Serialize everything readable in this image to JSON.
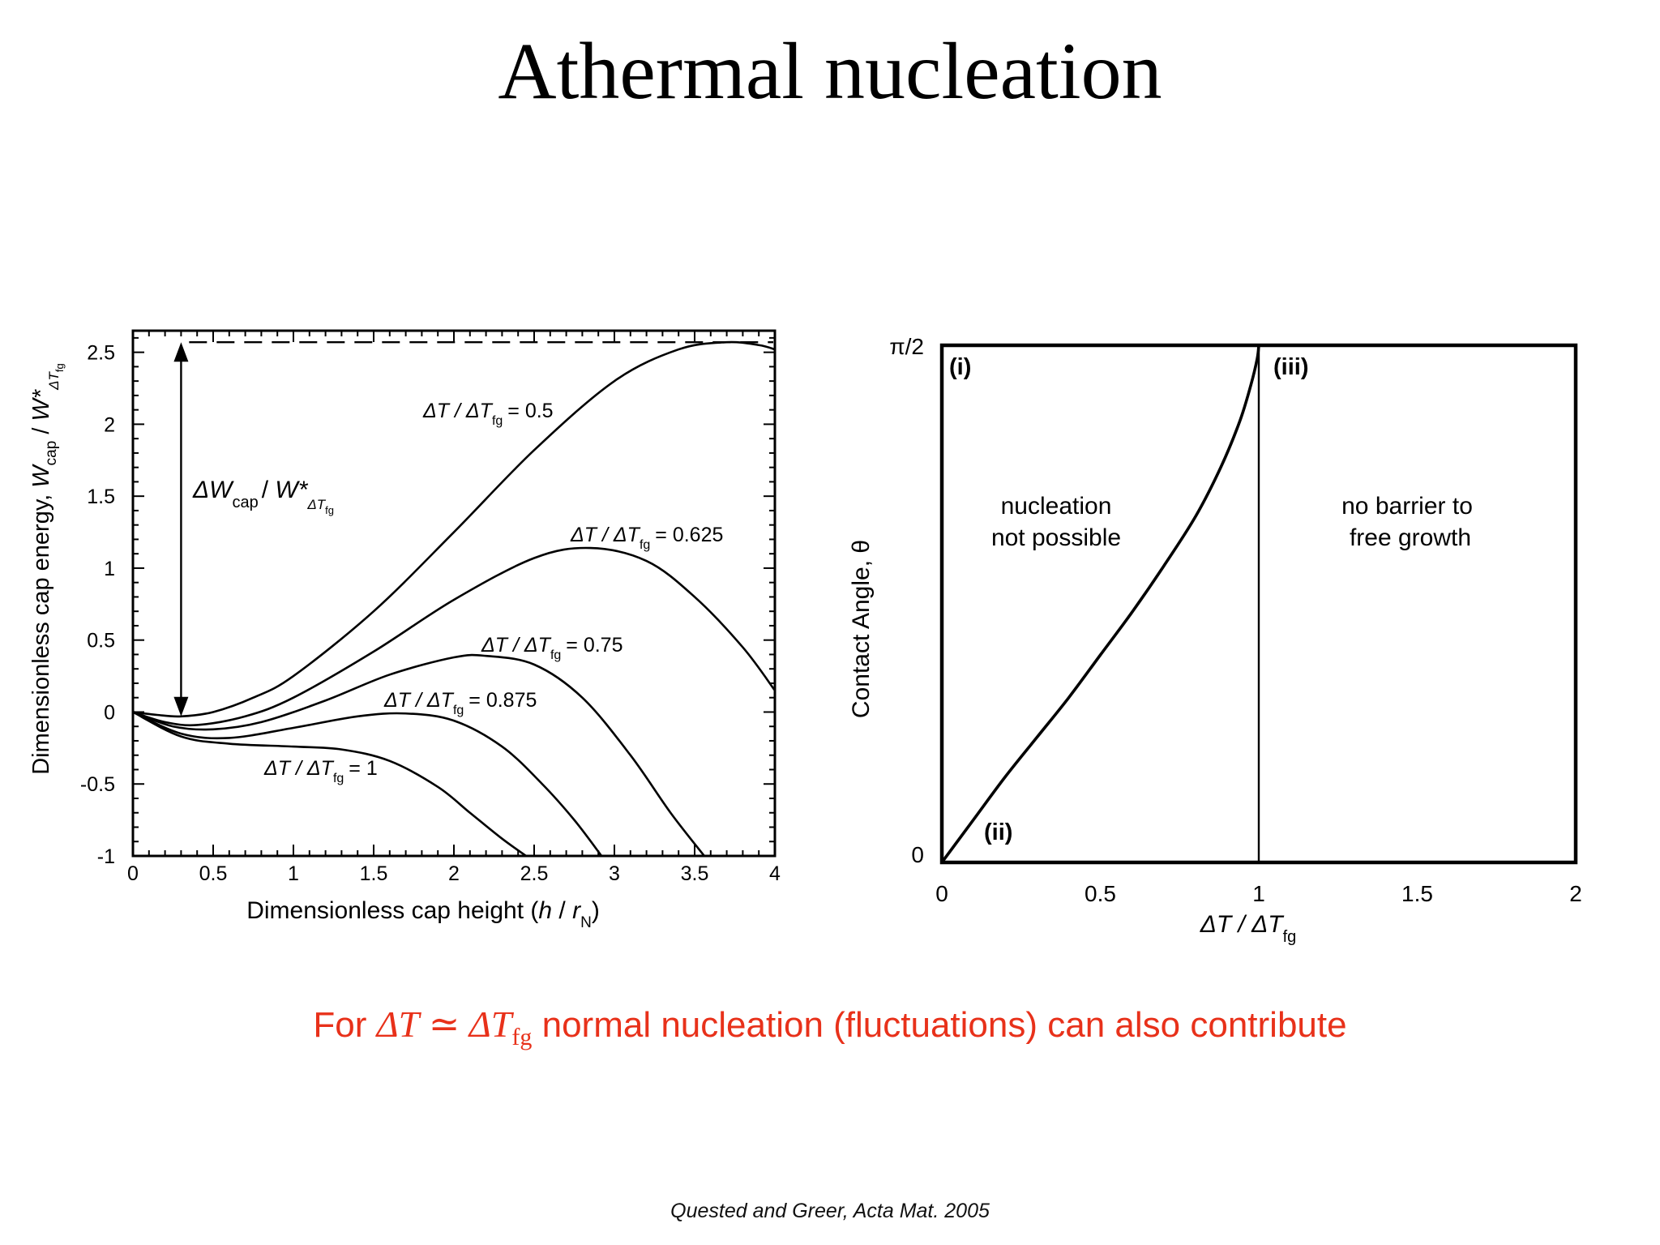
{
  "slide": {
    "title": "Athermal nucleation",
    "note_prefix": "For ",
    "note_math_left": "ΔT",
    "note_math_rel": " ≃ ",
    "note_math_right": "ΔT",
    "note_math_right_sub": "fg",
    "note_suffix": " normal nucleation (fluctuations) can also contribute",
    "note_color": "#e8311a",
    "citation": "Quested and Greer, Acta Mat. 2005"
  },
  "chart_data": [
    {
      "type": "line",
      "xlabel": "Dimensionless cap height (h / r_N)",
      "ylabel": "Dimensionless cap energy,  W_cap / W*_ΔT_fg",
      "xlim": [
        0,
        4
      ],
      "ylim": [
        -1,
        2.65
      ],
      "xticks": [
        0,
        0.5,
        1,
        1.5,
        2,
        2.5,
        3,
        3.5,
        4
      ],
      "yticks": [
        -1,
        -0.5,
        0,
        0.5,
        1,
        1.5,
        2,
        2.5
      ],
      "xtick_labels": [
        "0",
        "0.5",
        "1",
        "1.5",
        "2",
        "2.5",
        "3",
        "3.5",
        "4"
      ],
      "ytick_labels": [
        "-1",
        "-0.5",
        "0",
        "0.5",
        "1",
        "1.5",
        "2",
        "2.5"
      ],
      "grid": false,
      "series": [
        {
          "name": "ΔT / ΔT_fg = 0.5",
          "x": [
            0,
            0.15,
            0.3,
            0.5,
            0.75,
            1,
            1.5,
            2,
            2.5,
            3,
            3.4,
            3.7,
            3.9,
            4
          ],
          "y": [
            0,
            -0.02,
            -0.03,
            0.0,
            0.1,
            0.25,
            0.7,
            1.25,
            1.82,
            2.3,
            2.52,
            2.57,
            2.55,
            2.52
          ]
        },
        {
          "name": "ΔT / ΔT_fg = 0.625",
          "x": [
            0,
            0.2,
            0.4,
            0.7,
            1,
            1.5,
            2,
            2.5,
            2.85,
            3.2,
            3.5,
            3.8,
            4
          ],
          "y": [
            0,
            -0.07,
            -0.09,
            -0.03,
            0.1,
            0.42,
            0.78,
            1.07,
            1.14,
            1.05,
            0.8,
            0.45,
            0.15
          ]
        },
        {
          "name": "ΔT / ΔT_fg = 0.75",
          "x": [
            0,
            0.25,
            0.5,
            0.8,
            1.2,
            1.6,
            2,
            2.2,
            2.5,
            2.8,
            3.1,
            3.35,
            3.56
          ],
          "y": [
            0,
            -0.1,
            -0.12,
            -0.07,
            0.08,
            0.26,
            0.38,
            0.39,
            0.33,
            0.1,
            -0.3,
            -0.7,
            -1.0
          ]
        },
        {
          "name": "ΔT / ΔT_fg = 0.875",
          "x": [
            0,
            0.3,
            0.6,
            1,
            1.4,
            1.7,
            2,
            2.3,
            2.55,
            2.75,
            2.92
          ],
          "y": [
            0,
            -0.15,
            -0.18,
            -0.11,
            -0.03,
            -0.01,
            -0.06,
            -0.24,
            -0.5,
            -0.75,
            -1.0
          ]
        },
        {
          "name": "ΔT / ΔT_fg = 1",
          "x": [
            0,
            0.3,
            0.6,
            1,
            1.3,
            1.6,
            1.9,
            2.1,
            2.3,
            2.45
          ],
          "y": [
            0,
            -0.17,
            -0.22,
            -0.24,
            -0.26,
            -0.34,
            -0.52,
            -0.7,
            -0.88,
            -1.0
          ]
        }
      ],
      "annotations": {
        "dashed_level": 2.57,
        "arrow_label": "ΔW_cap / W*_ΔT_fg",
        "arrow_from": [
          0.3,
          2.57
        ],
        "arrow_to": [
          0.3,
          -0.03
        ],
        "label_main": "ΔT / ΔT",
        "label_sub": "fg",
        "values": [
          "= 0.5",
          "= 0.625",
          "= 0.75",
          "= 0.875",
          "= 1"
        ]
      },
      "label_parts": {
        "ylabel_prefix": "Dimensionless cap energy,   ",
        "ylabel_W": "W",
        "ylabel_cap": "cap",
        "ylabel_slash": "  /  ",
        "ylabel_Wstar": "W*",
        "ylabel_dT": "ΔT",
        "ylabel_fg": "fg",
        "xlabel_prefix": "Dimensionless cap height (",
        "xlabel_h": "h",
        "xlabel_mid": " / ",
        "xlabel_r": "r",
        "xlabel_N": "N",
        "xlabel_close": ")",
        "arrow_W": "ΔW",
        "arrow_cap": "cap",
        "arrow_slash": "/  ",
        "arrow_Wstar": "W*",
        "arrow_dT": "ΔT",
        "arrow_fg": "fg"
      }
    },
    {
      "type": "line",
      "xlabel": "ΔT / ΔT_fg",
      "ylabel": "Contact Angle, θ",
      "xlim": [
        0,
        2
      ],
      "ylim": [
        "0",
        "π/2"
      ],
      "xticks": [
        0,
        0.5,
        1,
        1.5,
        2
      ],
      "xtick_labels": [
        "0",
        "0.5",
        "1",
        "1.5",
        "2"
      ],
      "ytick_labels": [
        "0",
        "π/2"
      ],
      "grid": false,
      "series": [
        {
          "name": "boundary",
          "x": [
            0,
            0.1,
            0.2,
            0.3,
            0.4,
            0.5,
            0.6,
            0.7,
            0.8,
            0.88,
            0.94,
            0.975,
            0.995,
            1.0
          ],
          "y": [
            0,
            0.13,
            0.26,
            0.38,
            0.5,
            0.63,
            0.76,
            0.9,
            1.05,
            1.2,
            1.34,
            1.45,
            1.53,
            1.5708
          ]
        },
        {
          "name": "vertical",
          "x": [
            1,
            1
          ],
          "y": [
            0,
            1.5708
          ]
        }
      ],
      "region_labels": {
        "i": "(i)",
        "ii": "(ii)",
        "iii": "(iii)",
        "left_line1": "nucleation",
        "left_line2": "not possible",
        "right_line1": "no barrier to",
        "right_line2": "free growth"
      },
      "label_parts": {
        "xlabel_main": "ΔT / ΔT",
        "xlabel_sub": "fg"
      }
    }
  ]
}
